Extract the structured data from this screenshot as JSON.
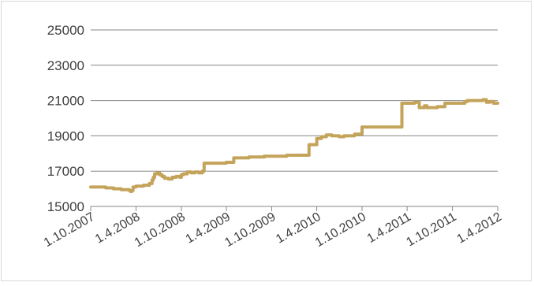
{
  "chart_data": {
    "type": "line",
    "title": "",
    "xlabel": "",
    "ylabel": "",
    "ylim": [
      15000,
      25000
    ],
    "y_ticks": [
      15000,
      17000,
      19000,
      21000,
      23000,
      25000
    ],
    "y_tick_labels": [
      "15000",
      "17000",
      "19000",
      "21000",
      "23000",
      "25000"
    ],
    "x_ticks": [
      "2007-10-01",
      "2008-04-01",
      "2008-10-01",
      "2009-04-01",
      "2009-10-01",
      "2010-04-01",
      "2010-10-01",
      "2011-04-01",
      "2011-10-01",
      "2012-04-01"
    ],
    "x_tick_labels": [
      "1.10.2007",
      "1.4.2008",
      "1.10.2008",
      "1.4.2009",
      "1.10.2009",
      "1.4.2010",
      "1.10.2010",
      "1.4.2011",
      "1.10.2011",
      "1.4.2012"
    ],
    "grid": "horizontal",
    "legend": "none",
    "line_color": "#C4A35A",
    "series": [
      {
        "x": [
          "2007-10-01",
          "2007-12-01",
          "2008-01-01",
          "2008-02-01",
          "2008-03-05",
          "2008-03-10",
          "2008-03-15",
          "2008-03-20",
          "2008-04-01",
          "2008-05-01",
          "2008-05-25",
          "2008-06-05",
          "2008-06-10",
          "2008-06-15",
          "2008-06-25",
          "2008-07-05",
          "2008-07-15",
          "2008-07-25",
          "2008-08-10",
          "2008-08-25",
          "2008-09-10",
          "2008-09-25",
          "2008-10-01",
          "2008-10-10",
          "2008-10-25",
          "2008-11-10",
          "2008-11-25",
          "2008-12-10",
          "2008-12-25",
          "2008-12-31",
          "2009-01-01",
          "2009-03-01",
          "2009-03-31",
          "2009-04-01",
          "2009-05-01",
          "2009-07-01",
          "2009-09-01",
          "2009-11-01",
          "2009-11-30",
          "2009-12-01",
          "2010-01-01",
          "2010-02-28",
          "2010-03-01",
          "2010-03-10",
          "2010-03-20",
          "2010-04-01",
          "2010-04-20",
          "2010-05-10",
          "2010-06-01",
          "2010-07-01",
          "2010-07-20",
          "2010-08-10",
          "2010-08-31",
          "2010-09-01",
          "2010-10-01",
          "2010-11-01",
          "2011-01-01",
          "2011-03-10",
          "2011-03-11",
          "2011-04-01",
          "2011-05-01",
          "2011-05-15",
          "2011-05-20",
          "2011-06-01",
          "2011-06-10",
          "2011-06-20",
          "2011-07-01",
          "2011-08-01",
          "2011-08-20",
          "2011-09-01",
          "2011-10-01",
          "2011-11-01",
          "2011-11-20",
          "2011-12-01",
          "2012-01-01",
          "2012-02-01",
          "2012-02-15",
          "2012-03-01",
          "2012-03-15",
          "2012-04-01"
        ],
        "y": [
          16100,
          16050,
          16000,
          15950,
          15900,
          15850,
          15900,
          16100,
          16150,
          16200,
          16300,
          16500,
          16650,
          16850,
          16900,
          16800,
          16700,
          16600,
          16550,
          16650,
          16700,
          16650,
          16800,
          16850,
          16950,
          16900,
          16950,
          16900,
          17000,
          17000,
          17450,
          17450,
          17500,
          17500,
          17750,
          17800,
          17850,
          17850,
          17850,
          17900,
          17900,
          17900,
          18500,
          18500,
          18500,
          18850,
          18950,
          19050,
          19000,
          18950,
          19000,
          19000,
          19050,
          19100,
          19500,
          19500,
          19500,
          19500,
          20850,
          20850,
          20900,
          20900,
          20600,
          20600,
          20700,
          20600,
          20600,
          20650,
          20650,
          20850,
          20850,
          20850,
          20950,
          21000,
          21000,
          21050,
          20900,
          20950,
          20850,
          20850
        ]
      }
    ]
  }
}
